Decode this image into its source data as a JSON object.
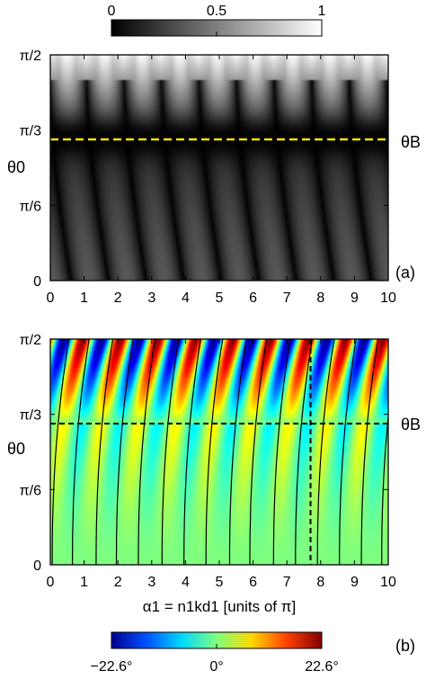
{
  "chart_data": [
    {
      "type": "heatmap",
      "panel_label": "(a)",
      "xlim": [
        0,
        10
      ],
      "x_ticks": [
        "0",
        "1",
        "2",
        "3",
        "4",
        "5",
        "6",
        "7",
        "8",
        "9",
        "10"
      ],
      "ylim_degrees": [
        0,
        90
      ],
      "y_ticks": [
        {
          "label": "0",
          "value": 0
        },
        {
          "label": "π/6",
          "value": 30
        },
        {
          "label": "π/3",
          "value": 60
        },
        {
          "label": "π/2",
          "value": 90
        }
      ],
      "ylabel": "θ0",
      "brewster_label": "θB",
      "brewster_angle_deg": 56.3,
      "brewster_line_color": "#f5e400",
      "colorbar": {
        "range": [
          0,
          1
        ],
        "tick_labels": [
          "0",
          "0.5",
          "1"
        ],
        "colors": [
          "#000000",
          "#ffffff"
        ]
      },
      "description_values": {
        "pattern": "periodic lobes in alpha1, near-zero band around θB",
        "lobe_centers_units_of_pi": [
          0.5,
          1.5,
          2.6,
          3.7,
          4.8,
          5.9,
          7.0,
          8.1,
          9.3
        ],
        "max_value_near_grazing": 1.0,
        "low_angle_max_value": 0.35
      }
    },
    {
      "type": "heatmap",
      "panel_label": "(b)",
      "xlim": [
        0,
        10
      ],
      "x_ticks": [
        "0",
        "1",
        "2",
        "3",
        "4",
        "5",
        "6",
        "7",
        "8",
        "9",
        "10"
      ],
      "xlabel": "α1 = n1kd1  [units of π]",
      "ylim_degrees": [
        0,
        90
      ],
      "y_ticks": [
        {
          "label": "0",
          "value": 0
        },
        {
          "label": "π/6",
          "value": 30
        },
        {
          "label": "π/3",
          "value": 60
        },
        {
          "label": "π/2",
          "value": 90
        }
      ],
      "ylabel": "θ0",
      "brewster_label": "θB",
      "brewster_angle_deg": 56.3,
      "vertical_marker_x": 7.7,
      "colorbar": {
        "range_degrees": [
          -22.6,
          22.6
        ],
        "tick_labels": [
          "−22.6°",
          "0°",
          "22.6°"
        ],
        "colors": [
          "#00008f",
          "#0050ff",
          "#00d8ff",
          "#80ff80",
          "#ffd800",
          "#ff4000",
          "#800000"
        ]
      },
      "contour_lines": {
        "count": 16,
        "start_x_at_grazing": [
          0.55,
          1.15,
          1.85,
          2.45,
          3.1,
          3.8,
          4.45,
          5.1,
          5.8,
          6.4,
          7.1,
          7.75,
          8.4,
          9.05,
          9.7,
          10.3
        ],
        "color": "#000000"
      }
    }
  ]
}
